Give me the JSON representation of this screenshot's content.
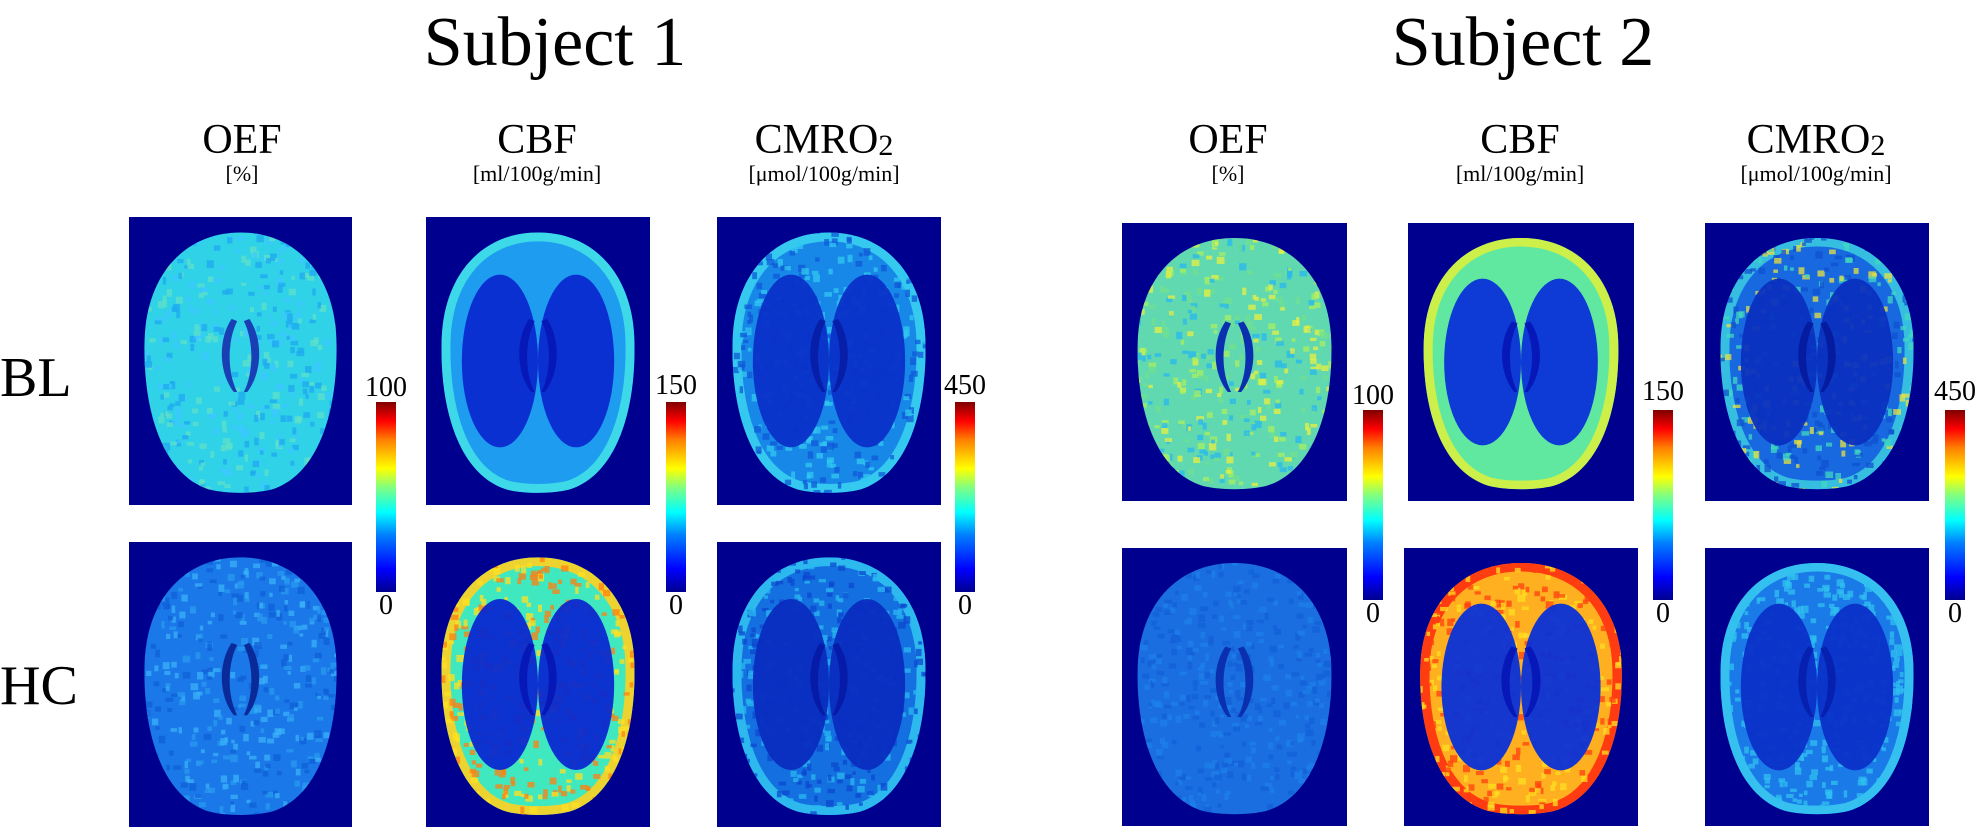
{
  "subjects": [
    {
      "title": "Subject 1",
      "columns": [
        {
          "name": "OEF",
          "unit": "[%]"
        },
        {
          "name": "CBF",
          "unit": "[ml/100g/min]"
        },
        {
          "name": "CMRO",
          "name_sub": "2",
          "unit": "[μmol/100g/min]"
        }
      ],
      "colorbars": [
        {
          "max": "100",
          "min": "0"
        },
        {
          "max": "150",
          "min": "0"
        },
        {
          "max": "450",
          "min": "0"
        }
      ]
    },
    {
      "title": "Subject 2",
      "columns": [
        {
          "name": "OEF",
          "unit": "[%]"
        },
        {
          "name": "CBF",
          "unit": "[ml/100g/min]"
        },
        {
          "name": "CMRO",
          "name_sub": "2",
          "unit": "[μmol/100g/min]"
        }
      ],
      "colorbars": [
        {
          "max": "100",
          "min": "0"
        },
        {
          "max": "150",
          "min": "0"
        },
        {
          "max": "450",
          "min": "0"
        }
      ]
    }
  ],
  "rows": [
    "BL",
    "HC"
  ],
  "colormap": "jet",
  "colors": {
    "background": "#00008f"
  }
}
